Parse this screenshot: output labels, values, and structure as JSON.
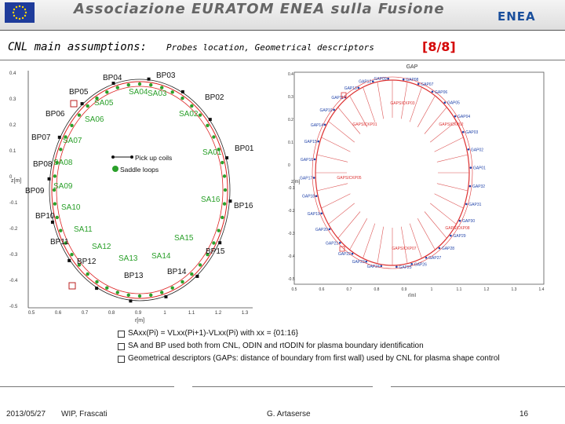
{
  "header": {
    "association": "Associazione EURATOM ENEA sulla Fusione",
    "logo_text": "ENEA",
    "flag_icon": "eu-flag-icon"
  },
  "title": {
    "main": "CNL main assumptions:",
    "sub": "Probes location, Geometrical descriptors",
    "page": "[8/8]"
  },
  "left_plot": {
    "ylabel": "z[m]",
    "xlabel": "r[m]",
    "yticks": [
      "0.4",
      "0.3",
      "0.2",
      "0.1",
      "0",
      "-0.1",
      "-0.2",
      "-0.3",
      "-0.4",
      "-0.5"
    ],
    "xticks": [
      "0.5",
      "0.6",
      "0.7",
      "0.8",
      "0.9",
      "1",
      "1.1",
      "1.2",
      "1.3"
    ],
    "legend": [
      "Pick up coils",
      "Saddle loops"
    ],
    "labels": [
      "BP04",
      "BP03",
      "BP05",
      "SA04",
      "SA03",
      "SA05",
      "BP02",
      "BP06",
      "SA06",
      "SA02",
      "BP07",
      "SA07",
      "BP01",
      "SA01",
      "BP08",
      "SA08",
      "BP09",
      "SA09",
      "SA16",
      "BP16",
      "SA10",
      "BP10",
      "SA11",
      "SA15",
      "BP11",
      "BP15",
      "SA12",
      "SA13",
      "SA14",
      "BP12",
      "BP13",
      "BP14"
    ]
  },
  "right_plot": {
    "title": "GAP",
    "ylabel": "z[m]",
    "xlabel": "r[m]",
    "yticks": [
      "0.4",
      "0.3",
      "0.2",
      "0.1",
      "0",
      "-0.1",
      "-0.2",
      "-0.3",
      "-0.4",
      "-0.5"
    ],
    "xticks": [
      "0.5",
      "0.6",
      "0.7",
      "0.8",
      "0.9",
      "1",
      "1.1",
      "1.2",
      "1.3",
      "1.4"
    ],
    "labels": [
      "GAP12",
      "GAP13",
      "GAP11",
      "GAP10",
      "GAP14",
      "GAP15",
      "GAP16",
      "GAP17",
      "GAP18",
      "GAP19",
      "GAP20",
      "GAP21",
      "GAP22",
      "GAP23",
      "GAP24",
      "GAP25",
      "GAP26",
      "GAP27",
      "GAP28",
      "GAP29",
      "GAP30",
      "GAP31",
      "GAP32",
      "GAP01",
      "GAP02",
      "GAP03",
      "GAP04",
      "GAP05",
      "GAP06",
      "GAP07",
      "GAP08",
      "GAP09",
      "GAPSICKP03",
      "GAPSICKP02",
      "GAPSICKP01",
      "GAPSICKP05",
      "GAPSICKP08",
      "GAPSICKP07"
    ]
  },
  "bullets": [
    "SAxx(Pi) = VLxx(Pi+1)-VLxx(Pi) with xx = {01:16}",
    "SA and BP used both from CNL, ODIN and rtODIN for plasma boundary identification",
    "Geometrical descriptors (GAPs: distance of boundary from first wall) used by CNL for plasma shape control"
  ],
  "footer": {
    "date": "2013/05/27",
    "event": "WIP, Frascati",
    "author": "G. Artaserse",
    "page_number": "16"
  }
}
